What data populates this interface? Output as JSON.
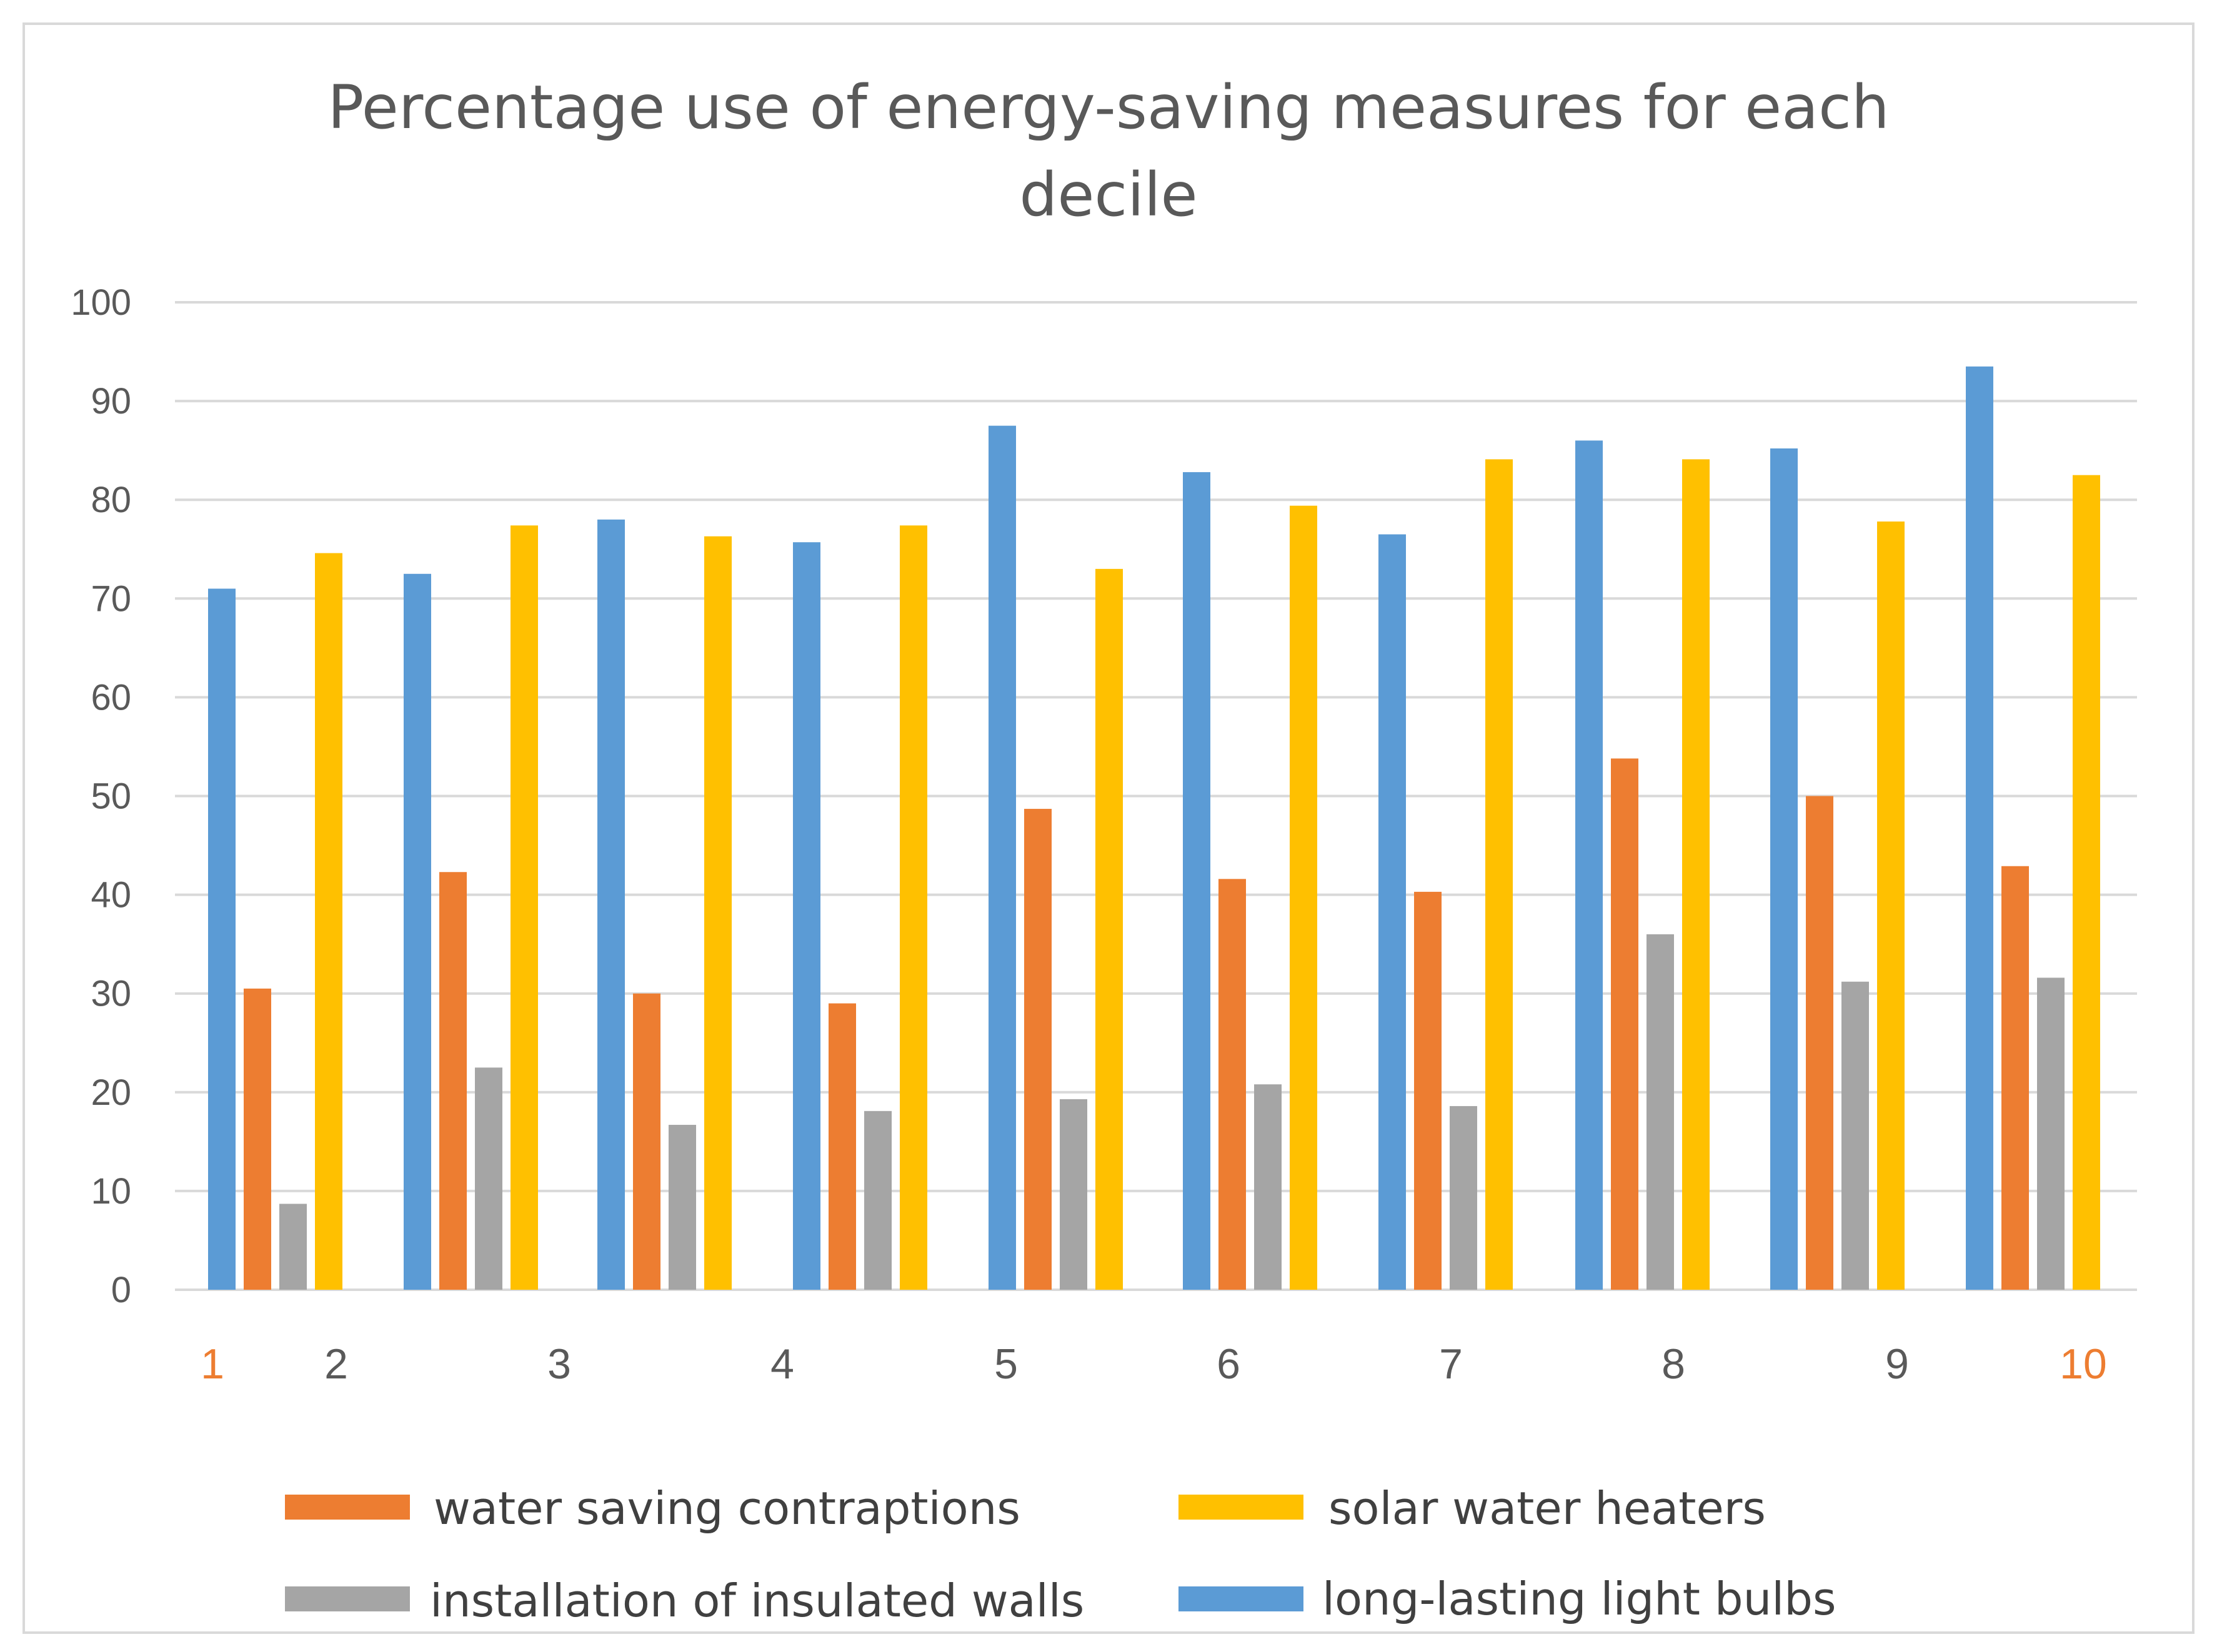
{
  "chart_data": {
    "type": "bar",
    "title": "Percentage use of energy-saving measures for each decile",
    "title_lines": [
      "Percentage use of energy-saving measures for each",
      "decile"
    ],
    "categories": [
      "1",
      "2",
      "3",
      "4",
      "5",
      "6",
      "7",
      "8",
      "9",
      "10"
    ],
    "category_colors": [
      "#ed7d31",
      "#595959",
      "#595959",
      "#595959",
      "#595959",
      "#595959",
      "#595959",
      "#595959",
      "#595959",
      "#ed7d31"
    ],
    "ylim": [
      0,
      100
    ],
    "yticks": [
      0,
      10,
      20,
      30,
      40,
      50,
      60,
      70,
      80,
      90,
      100
    ],
    "grid": true,
    "legend_position": "bottom",
    "series": [
      {
        "name": "long-lasting light bulbs",
        "color": "#5b9bd5",
        "values": [
          71,
          72.5,
          78,
          75.7,
          87.5,
          82.8,
          76.5,
          86,
          85.2,
          93.5
        ]
      },
      {
        "name": "water saving contraptions",
        "color": "#ed7d31",
        "values": [
          30.5,
          42.3,
          30,
          29,
          48.7,
          41.6,
          40.3,
          53.8,
          50,
          42.9
        ]
      },
      {
        "name": "installation of insulated walls",
        "color": "#a5a5a5",
        "values": [
          8.7,
          22.5,
          16.7,
          18.1,
          19.3,
          20.8,
          18.6,
          36,
          31.2,
          31.6
        ]
      },
      {
        "name": "solar water heaters",
        "color": "#ffc000",
        "values": [
          74.6,
          77.4,
          76.3,
          77.4,
          73,
          79.4,
          84.1,
          84.1,
          77.8,
          82.5
        ]
      }
    ],
    "legend_order": [
      "water saving contraptions",
      "solar water heaters",
      "installation of insulated walls",
      "long-lasting light bulbs"
    ]
  }
}
